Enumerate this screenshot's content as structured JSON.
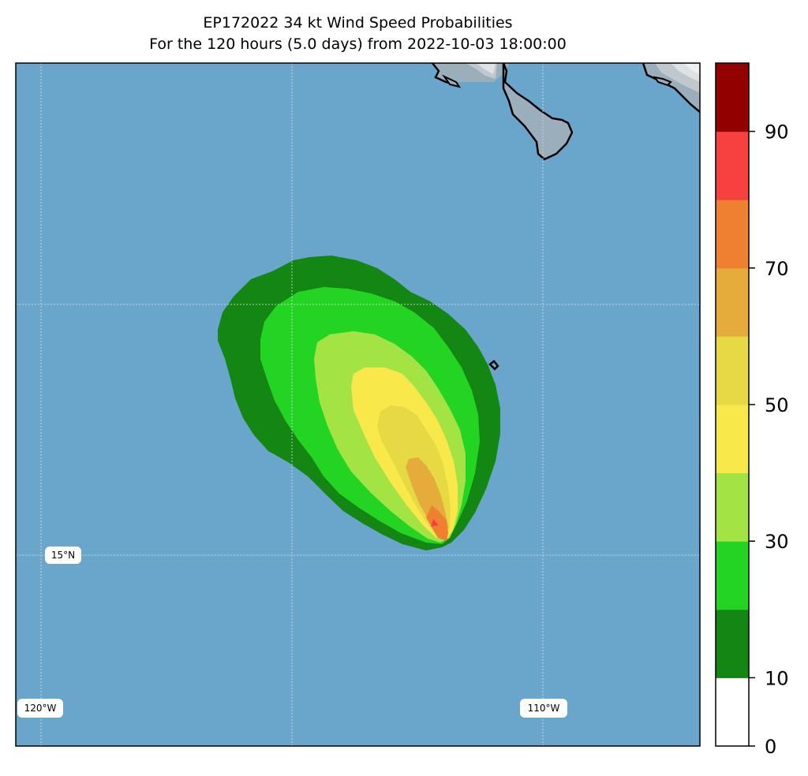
{
  "title": {
    "line1": "EP172022 34 kt Wind Speed Probabilities",
    "line2": "For the 120 hours (5.0 days) from 2022-10-03 18:00:00"
  },
  "map": {
    "ocean_color": "#6aa6cb",
    "land_color": "#9aaebb",
    "coast_color": "#000000",
    "gridlines": "dotted",
    "gridline_labels": {
      "lat_15": "15°N",
      "lon_120": "120°W",
      "lon_110": "110°W"
    }
  },
  "colorbar": {
    "orientation": "vertical",
    "position": "right",
    "levels": [
      0,
      10,
      20,
      30,
      40,
      50,
      60,
      70,
      80,
      90,
      100
    ],
    "colors": [
      "#ffffff",
      "#138613",
      "#23d423",
      "#a3e344",
      "#f9e84a",
      "#e6d944",
      "#e5ac3b",
      "#ef8031",
      "#f74040",
      "#930000",
      "#8125d9"
    ],
    "tick_labels": [
      "0",
      "10",
      "30",
      "50",
      "70",
      "90"
    ]
  },
  "chart_data": {
    "type": "heatmap",
    "title": "EP172022 34 kt Wind Speed Probabilities",
    "subtitle": "For the 120 hours (5.0 days) from 2022-10-03 18:00:00",
    "variable": "34 kt wind speed probability (%)",
    "storm_id": "EP172022",
    "period_hours": 120,
    "start_time": "2022-10-03 18:00:00",
    "contour_levels": [
      0,
      10,
      20,
      30,
      40,
      50,
      60,
      70,
      80,
      90,
      100
    ],
    "max_probability_band": [
      70,
      80
    ],
    "legend": "right colorbar"
  }
}
